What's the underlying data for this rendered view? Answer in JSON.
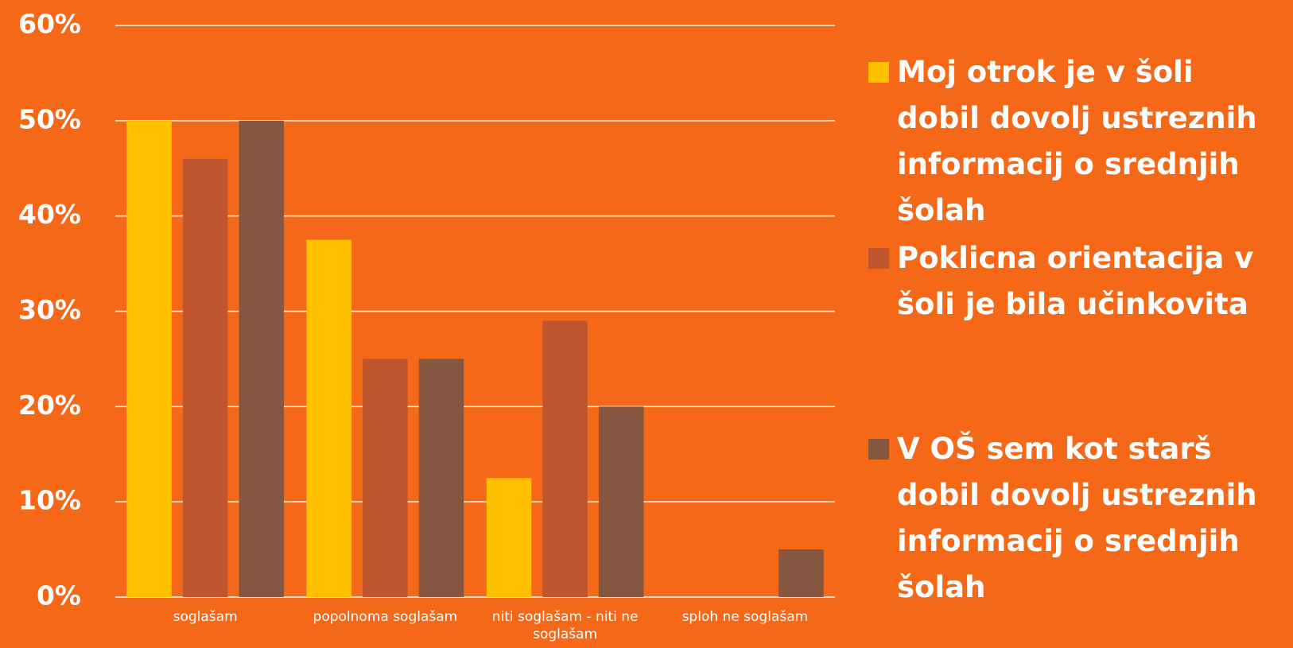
{
  "chart_data": {
    "type": "bar",
    "categories": [
      "soglašam",
      "popolnoma soglašam",
      "niti soglašam - niti ne soglašam",
      "sploh ne soglašam"
    ],
    "series": [
      {
        "name": "Moj otrok je v šoli dobil dovolj ustreznih informacij o srednjih šolah",
        "color": "#FFC000",
        "values": [
          50,
          37.5,
          12.5,
          0
        ]
      },
      {
        "name": "Poklicna orientacija v šoli je bila učinkovita",
        "color": "#BF562D",
        "values": [
          46,
          25,
          29,
          0
        ]
      },
      {
        "name": "V OŠ sem kot starš dobil dovolj ustreznih informacij o srednjih šolah",
        "color": "#855640",
        "values": [
          50,
          25,
          20,
          5
        ]
      }
    ],
    "ylim": [
      0,
      60
    ],
    "yticks": [
      {
        "value": 0,
        "label": "0%"
      },
      {
        "value": 10,
        "label": "10%"
      },
      {
        "value": 20,
        "label": "20%"
      },
      {
        "value": 30,
        "label": "30%"
      },
      {
        "value": 40,
        "label": "40%"
      },
      {
        "value": 50,
        "label": "50%"
      },
      {
        "value": 60,
        "label": "60%"
      }
    ],
    "grid": true,
    "background": "#F46818"
  }
}
